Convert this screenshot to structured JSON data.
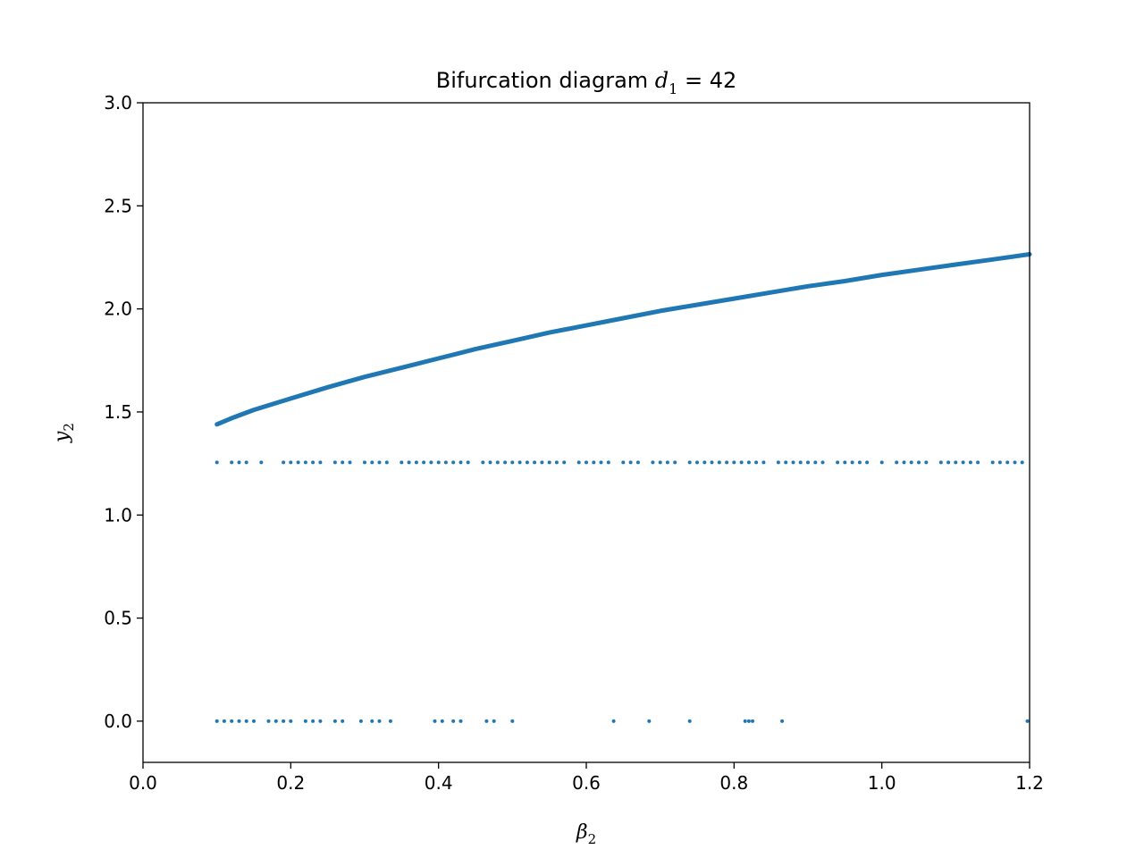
{
  "chart_data": {
    "type": "scatter",
    "title": {
      "prefix": "Bifurcation diagram ",
      "var": "d",
      "sub": "1",
      "suffix": " = 42"
    },
    "xlabel": {
      "var": "β",
      "sub": "2"
    },
    "ylabel": {
      "var": "y",
      "sub": "2"
    },
    "xlim": [
      0.0,
      1.2
    ],
    "ylim": [
      -0.2,
      3.0
    ],
    "xticks": [
      "0.0",
      "0.2",
      "0.4",
      "0.6",
      "0.8",
      "1.0",
      "1.2"
    ],
    "yticks": [
      "0.0",
      "0.5",
      "1.0",
      "1.5",
      "2.0",
      "2.5",
      "3.0"
    ],
    "grid": false,
    "color": "#1f77b4",
    "series": [
      {
        "x": [
          0.1,
          0.12,
          0.15,
          0.2,
          0.25,
          0.3,
          0.35,
          0.4,
          0.45,
          0.5,
          0.55,
          0.6,
          0.65,
          0.7,
          0.75,
          0.8,
          0.85,
          0.9,
          0.95,
          1.0,
          1.05,
          1.1,
          1.15,
          1.2
        ],
        "y": [
          1.44,
          1.47,
          1.51,
          1.565,
          1.62,
          1.67,
          1.715,
          1.76,
          1.805,
          1.845,
          1.885,
          1.92,
          1.955,
          1.99,
          2.02,
          2.05,
          2.08,
          2.11,
          2.135,
          2.165,
          2.19,
          2.215,
          2.24,
          2.265
        ]
      },
      {
        "x": [
          0.1,
          0.12,
          0.13,
          0.14,
          0.16,
          0.19,
          0.2,
          0.21,
          0.22,
          0.23,
          0.24,
          0.26,
          0.27,
          0.28,
          0.3,
          0.31,
          0.32,
          0.33,
          0.35,
          0.36,
          0.37,
          0.38,
          0.39,
          0.4,
          0.41,
          0.42,
          0.43,
          0.44,
          0.46,
          0.47,
          0.48,
          0.49,
          0.5,
          0.51,
          0.52,
          0.53,
          0.54,
          0.55,
          0.56,
          0.57,
          0.59,
          0.6,
          0.61,
          0.62,
          0.63,
          0.65,
          0.66,
          0.67,
          0.69,
          0.7,
          0.71,
          0.72,
          0.74,
          0.75,
          0.76,
          0.77,
          0.78,
          0.79,
          0.8,
          0.81,
          0.82,
          0.83,
          0.84,
          0.86,
          0.87,
          0.88,
          0.89,
          0.9,
          0.91,
          0.92,
          0.94,
          0.95,
          0.96,
          0.97,
          0.98,
          1.0,
          1.02,
          1.03,
          1.04,
          1.05,
          1.06,
          1.08,
          1.09,
          1.1,
          1.11,
          1.12,
          1.13,
          1.15,
          1.16,
          1.17,
          1.18,
          1.19
        ],
        "y": [
          1.255,
          1.255,
          1.255,
          1.255,
          1.255,
          1.255,
          1.255,
          1.255,
          1.255,
          1.255,
          1.255,
          1.255,
          1.255,
          1.255,
          1.255,
          1.255,
          1.255,
          1.255,
          1.255,
          1.255,
          1.255,
          1.255,
          1.255,
          1.255,
          1.255,
          1.255,
          1.255,
          1.255,
          1.255,
          1.255,
          1.255,
          1.255,
          1.255,
          1.255,
          1.255,
          1.255,
          1.255,
          1.255,
          1.255,
          1.255,
          1.255,
          1.255,
          1.255,
          1.255,
          1.255,
          1.255,
          1.255,
          1.255,
          1.255,
          1.255,
          1.255,
          1.255,
          1.255,
          1.255,
          1.255,
          1.255,
          1.255,
          1.255,
          1.255,
          1.255,
          1.255,
          1.255,
          1.255,
          1.255,
          1.255,
          1.255,
          1.255,
          1.255,
          1.255,
          1.255,
          1.255,
          1.255,
          1.255,
          1.255,
          1.255,
          1.255,
          1.255,
          1.255,
          1.255,
          1.255,
          1.255,
          1.255,
          1.255,
          1.255,
          1.255,
          1.255,
          1.255,
          1.255,
          1.255,
          1.255,
          1.255,
          1.255
        ]
      },
      {
        "x": [
          0.1,
          0.11,
          0.12,
          0.13,
          0.14,
          0.15,
          0.17,
          0.18,
          0.19,
          0.2,
          0.22,
          0.23,
          0.24,
          0.26,
          0.27,
          0.295,
          0.31,
          0.32,
          0.335,
          0.395,
          0.405,
          0.42,
          0.43,
          0.465,
          0.475,
          0.5,
          0.637,
          0.685,
          0.74,
          0.815,
          0.82,
          0.825,
          0.865,
          1.197
        ],
        "y": [
          0,
          0,
          0,
          0,
          0,
          0,
          0,
          0,
          0,
          0,
          0,
          0,
          0,
          0,
          0,
          0,
          0,
          0,
          0,
          0,
          0,
          0,
          0,
          0,
          0,
          0,
          0,
          0,
          0,
          0,
          0,
          0,
          0,
          0
        ]
      }
    ]
  }
}
